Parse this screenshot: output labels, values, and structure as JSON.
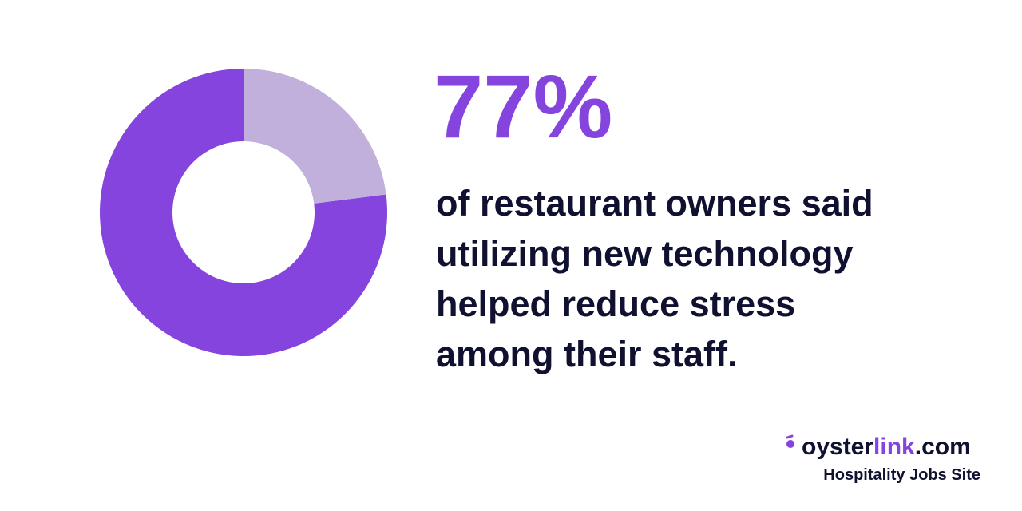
{
  "chart_data": {
    "type": "pie",
    "values": [
      77,
      23
    ],
    "value_labels": [
      "77%",
      null
    ],
    "colors": [
      "#8544dd",
      "#c2b0dc"
    ],
    "donut": true,
    "caption": [
      "of restaurant owners said",
      "utilizing new technology",
      "helped reduce stress",
      "among their staff."
    ]
  },
  "brand": {
    "name_parts": [
      "oyster",
      "link",
      ".com"
    ],
    "tagline": "Hospitality Jobs Site"
  }
}
